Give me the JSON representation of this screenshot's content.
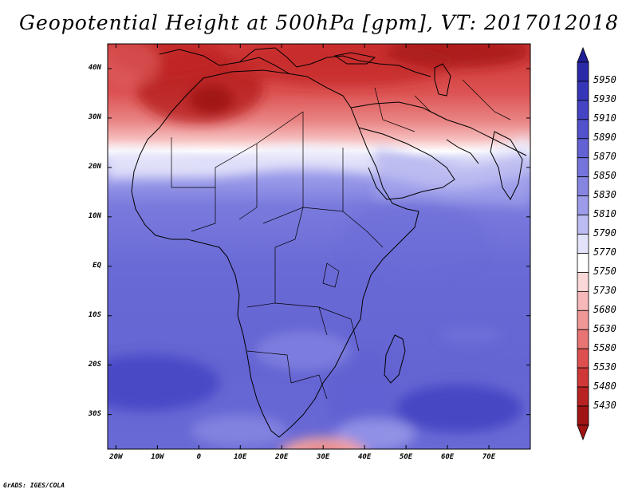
{
  "title": "Geopotential Height at 500hPa [gpm], VT: 2017012018",
  "credit": "GrADS: IGES/COLA",
  "axes": {
    "lat_labels": [
      "40N",
      "30N",
      "20N",
      "10N",
      "EQ",
      "10S",
      "20S",
      "30S"
    ],
    "lat_values": [
      40,
      30,
      20,
      10,
      0,
      -10,
      -20,
      -30
    ],
    "lon_labels": [
      "20W",
      "10W",
      "0",
      "10E",
      "20E",
      "30E",
      "40E",
      "50E",
      "60E",
      "70E"
    ],
    "lon_values": [
      -20,
      -10,
      0,
      10,
      20,
      30,
      40,
      50,
      60,
      70
    ],
    "lon_range": [
      -22,
      80
    ],
    "lat_range": [
      -37,
      45
    ]
  },
  "colorbar": {
    "labels": [
      "5950",
      "5930",
      "5910",
      "5890",
      "5870",
      "5850",
      "5830",
      "5810",
      "5790",
      "5770",
      "5750",
      "5730",
      "5680",
      "5630",
      "5580",
      "5530",
      "5480",
      "5430"
    ],
    "colors": [
      "#2a2aa8",
      "#3636b8",
      "#4444c4",
      "#5252cc",
      "#6262d4",
      "#7474dc",
      "#8686e2",
      "#9c9cea",
      "#bcbcf2",
      "#e2e2fa",
      "#ffffff",
      "#fbd8d8",
      "#f6b8b8",
      "#f09898",
      "#e87474",
      "#de5050",
      "#d03838",
      "#b82222",
      "#a01414"
    ],
    "top_arrow_color": "#1e1e96",
    "bottom_arrow_color": "#a01414"
  },
  "field_colors": {
    "deep_red": "#b41c1c",
    "red": "#d84040",
    "light_red": "#e87474",
    "pink": "#f4aaaa",
    "pale_pink": "#fbd8d8",
    "white": "#ffffff",
    "pale_blue": "#c8c8f4",
    "light_blue": "#9c9cea",
    "blue": "#7474dc",
    "mid_blue": "#6262d4",
    "deep_blue": "#4444c4"
  }
}
